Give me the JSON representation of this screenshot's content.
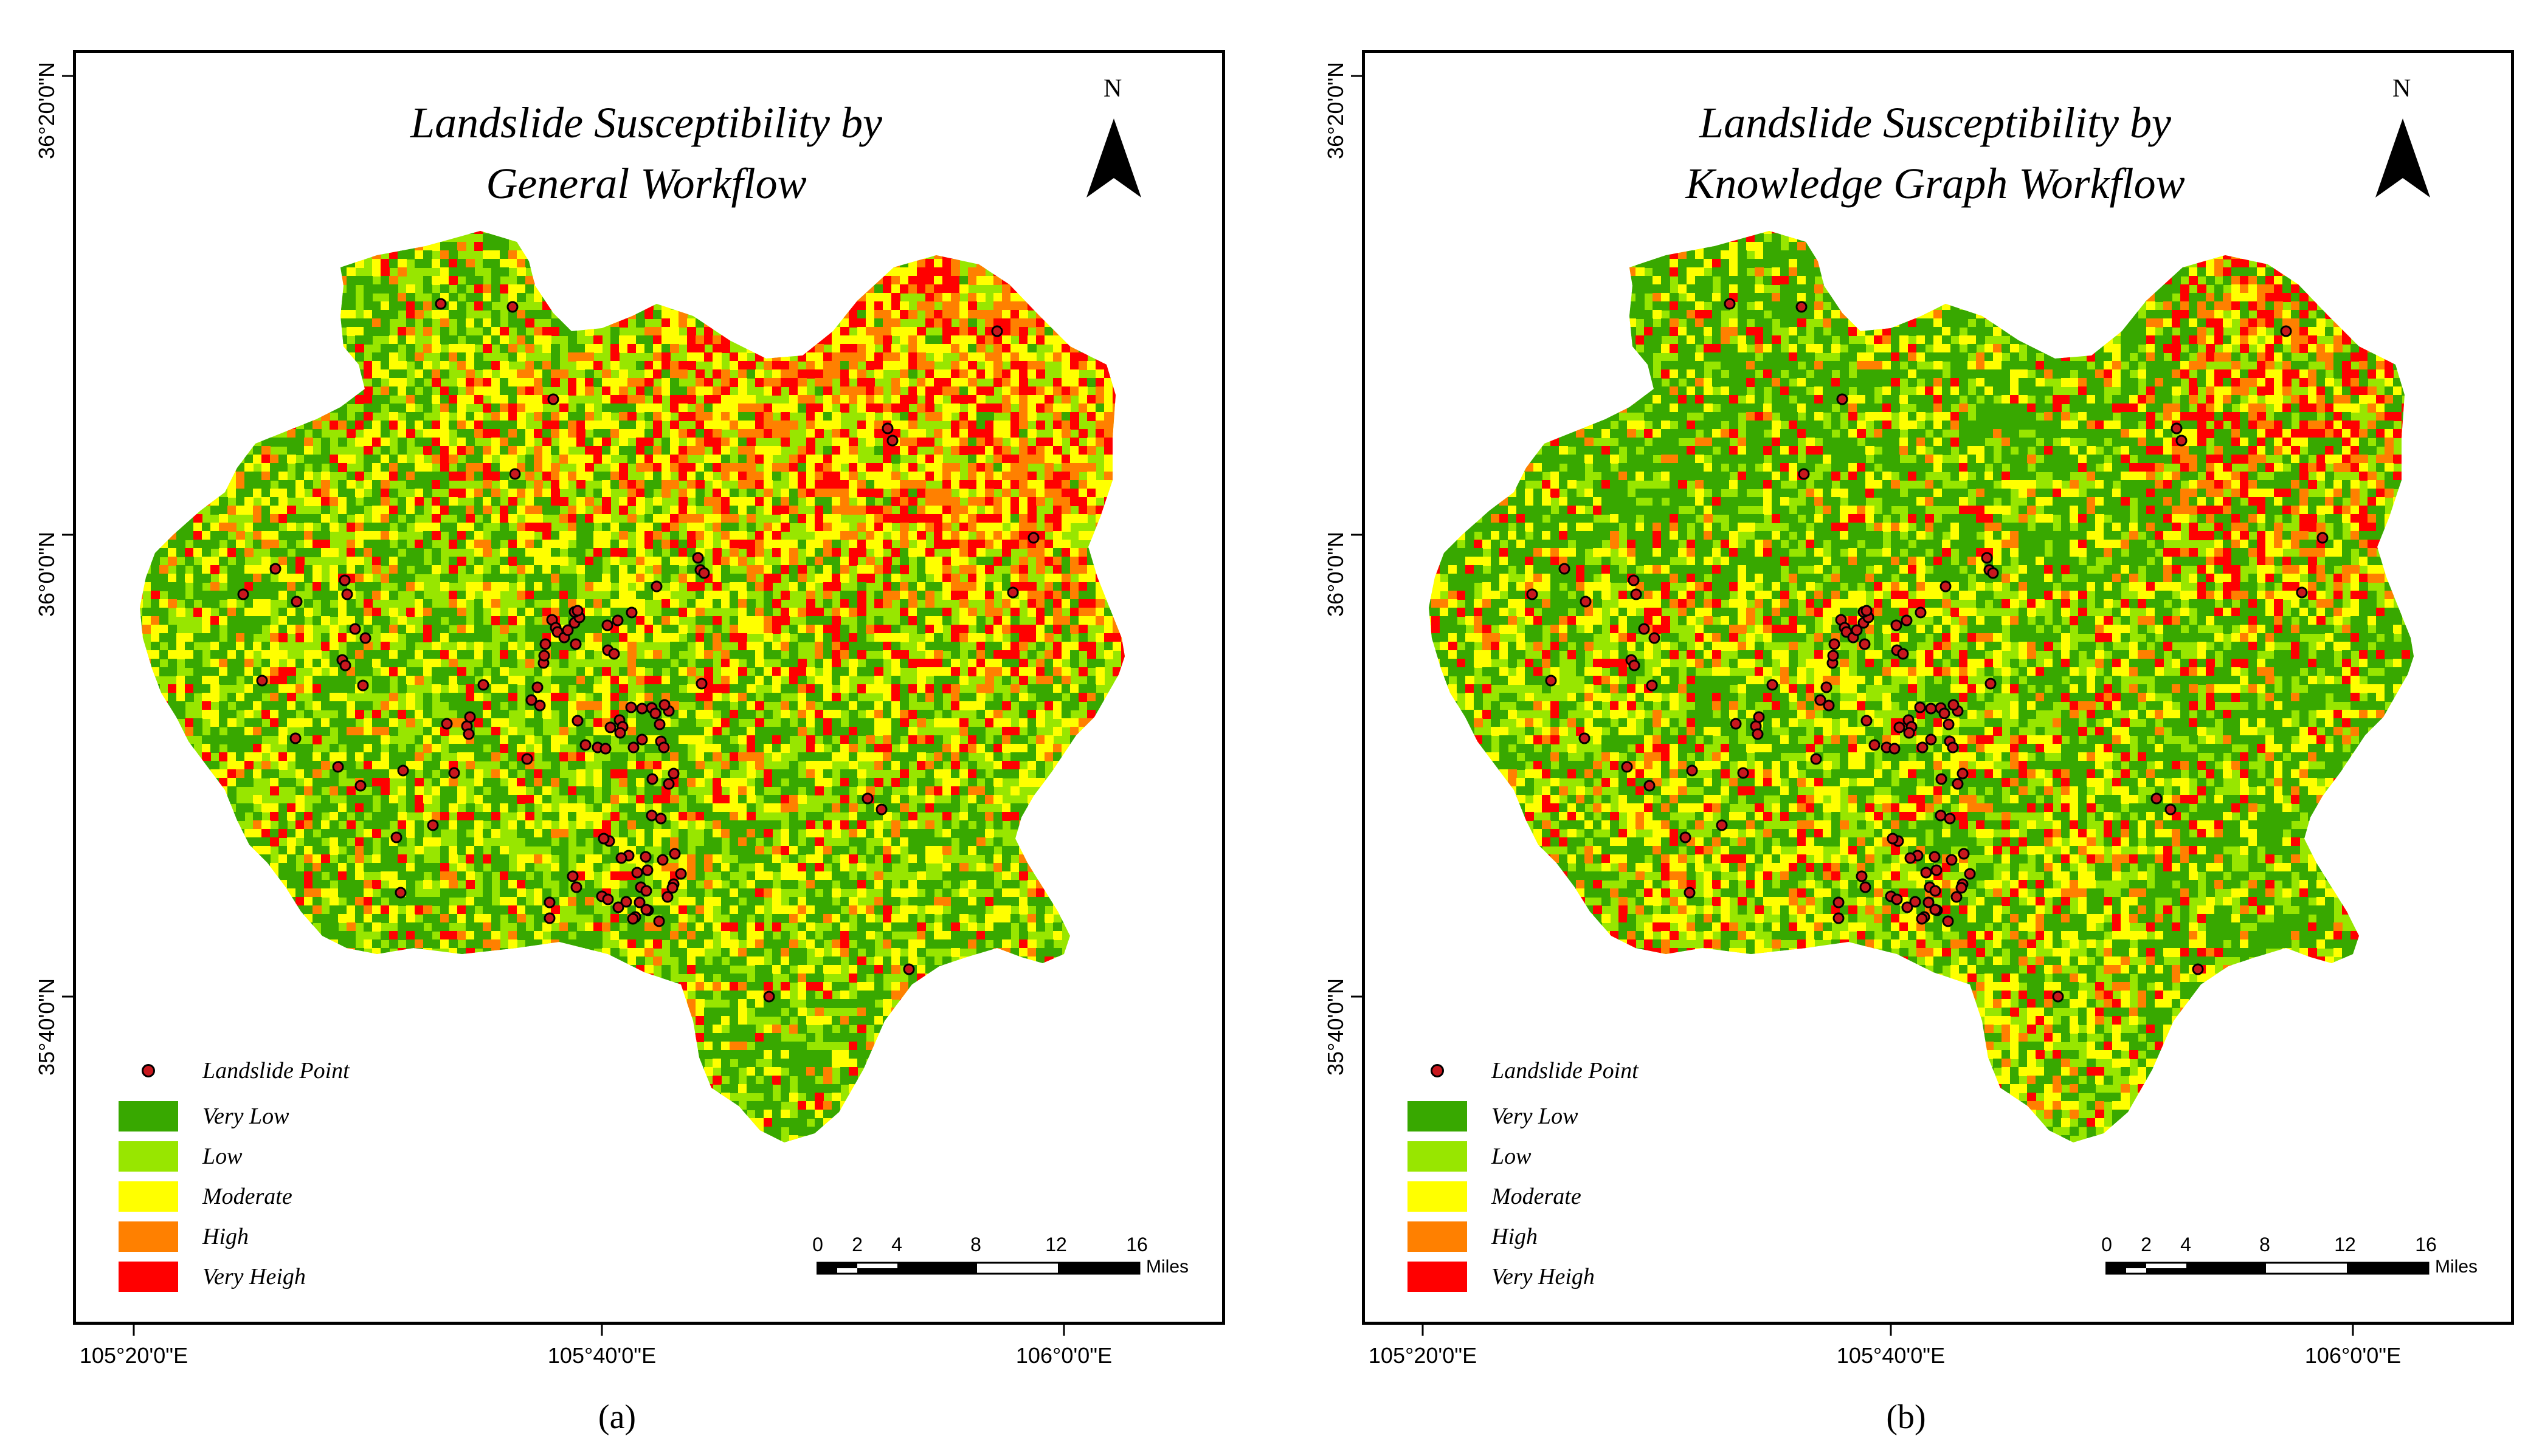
{
  "panels": [
    {
      "id": "a",
      "title_line1": "Landslide Susceptibility by",
      "title_line2": "General Workflow",
      "caption": "(a)",
      "scheme": "general"
    },
    {
      "id": "b",
      "title_line1": "Landslide Susceptibility by",
      "title_line2": "Knowledge Graph Workflow",
      "caption": "(b)",
      "scheme": "knowledge"
    }
  ],
  "north_label": "N",
  "lat_labels": [
    "36°20'0\"N",
    "36°0'0\"N",
    "35°40'0\"N"
  ],
  "lon_labels": [
    "105°20'0\"E",
    "105°40'0\"E",
    "106°0'0\"E"
  ],
  "legend": {
    "point_label": "Landslide Point",
    "classes": [
      {
        "label": "Very Low",
        "color": "#38a800"
      },
      {
        "label": "Low",
        "color": "#98e600"
      },
      {
        "label": "Moderate",
        "color": "#ffff00"
      },
      {
        "label": "High",
        "color": "#ff8000"
      },
      {
        "label": "Very Heigh",
        "color": "#ff0000"
      }
    ]
  },
  "scale_bar": {
    "ticks": [
      "0",
      "2",
      "4",
      "8",
      "12",
      "16"
    ],
    "unit": "Miles"
  }
}
